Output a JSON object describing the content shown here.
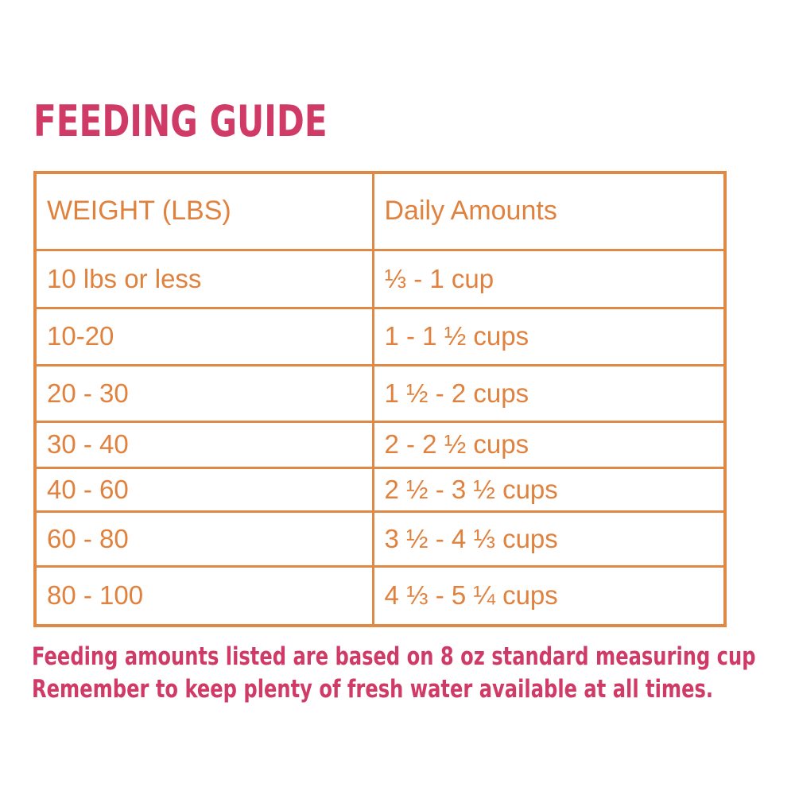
{
  "title": "FEEDING GUIDE",
  "colors": {
    "accent_pink": "#d03a66",
    "accent_orange_text": "#e0823e",
    "accent_orange_border": "#e08945",
    "background": "#ffffff"
  },
  "footer": {
    "line1": "Feeding amounts listed are based on 8 oz standard measuring cup",
    "line2": "Remember to keep plenty of fresh water available at all times."
  },
  "chart_data": {
    "type": "table",
    "title": "FEEDING GUIDE",
    "columns": [
      "WEIGHT (LBS)",
      "Daily Amounts"
    ],
    "rows": [
      [
        "10 lbs or less",
        "⅓ - 1 cup"
      ],
      [
        "10-20",
        "1 - 1 ½ cups"
      ],
      [
        "20 - 30",
        "1 ½ - 2 cups"
      ],
      [
        "30 - 40",
        "2 - 2 ½ cups"
      ],
      [
        "40 - 60",
        "2 ½ - 3 ½ cups"
      ],
      [
        "60 - 80",
        "3 ½ - 4 ⅓ cups"
      ],
      [
        "80 - 100",
        "4 ⅓ - 5 ¼ cups"
      ]
    ],
    "notes": [
      "Feeding amounts listed are based on 8 oz standard measuring cup",
      "Remember to keep plenty of fresh water available at all times."
    ]
  }
}
